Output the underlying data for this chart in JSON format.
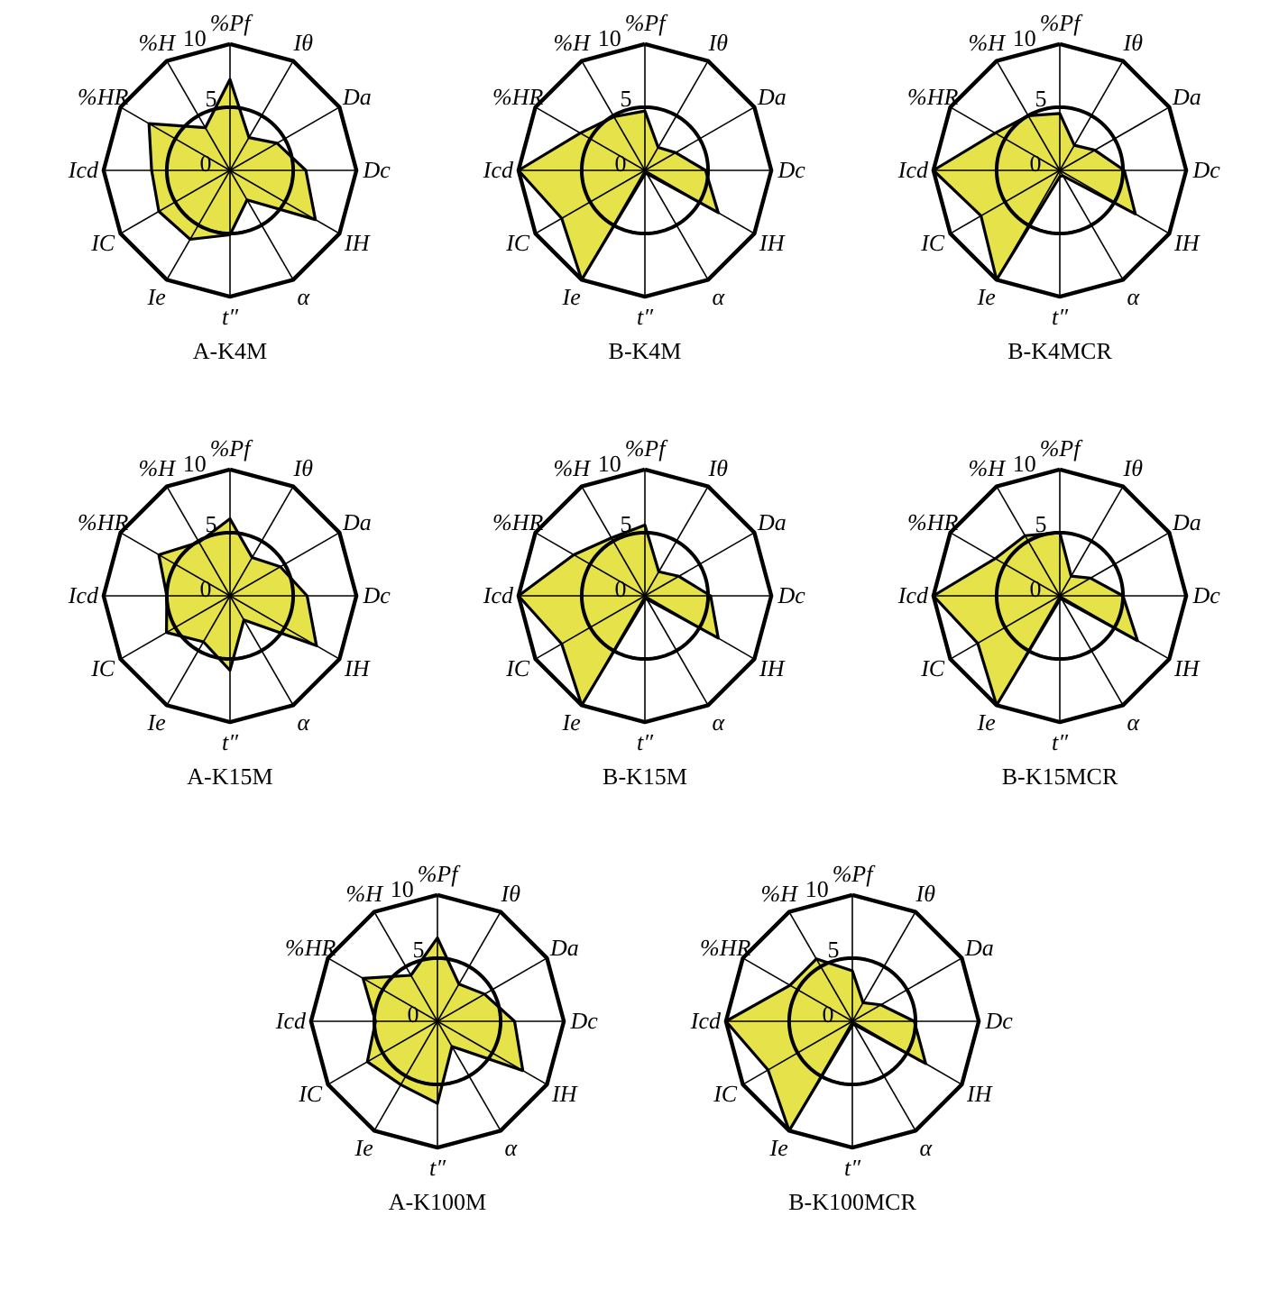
{
  "chart_data": [
    {
      "type": "radar",
      "title": "A-K4M",
      "categories": [
        "%Pf",
        "Iθ",
        "Da",
        "Dc",
        "IH",
        "α",
        "t″",
        "Ie",
        "IC",
        "Icd",
        "%HR",
        "%H"
      ],
      "ylim": [
        0,
        10
      ],
      "yticks": [
        0,
        5,
        10
      ],
      "grid": true,
      "series": [
        {
          "color": "#e6e24a",
          "values": [
            7.2,
            3.0,
            4.3,
            6.0,
            7.8,
            2.7,
            5.1,
            6.3,
            6.5,
            6.2,
            7.4,
            3.9
          ]
        }
      ]
    },
    {
      "type": "radar",
      "title": "B-K4M",
      "categories": [
        "%Pf",
        "Iθ",
        "Da",
        "Dc",
        "IH",
        "α",
        "t″",
        "Ie",
        "IC",
        "Icd",
        "%HR",
        "%H"
      ],
      "ylim": [
        0,
        10
      ],
      "yticks": [
        0,
        5,
        10
      ],
      "grid": true,
      "series": [
        {
          "color": "#e6e24a",
          "values": [
            4.7,
            2.1,
            2.8,
            4.8,
            6.7,
            0.3,
            0.3,
            10,
            7.6,
            10,
            5.9,
            4.9
          ]
        }
      ]
    },
    {
      "type": "radar",
      "title": "B-K4MCR",
      "categories": [
        "%Pf",
        "Iθ",
        "Da",
        "Dc",
        "IH",
        "α",
        "t″",
        "Ie",
        "IC",
        "Icd",
        "%HR",
        "%H"
      ],
      "ylim": [
        0,
        10
      ],
      "yticks": [
        0,
        5,
        10
      ],
      "grid": true,
      "series": [
        {
          "color": "#e6e24a",
          "values": [
            4.5,
            2.3,
            3.2,
            5.1,
            6.9,
            0.5,
            0.5,
            10,
            7.2,
            10,
            5.9,
            5.0
          ]
        }
      ]
    },
    {
      "type": "radar",
      "title": "A-K15M",
      "categories": [
        "%Pf",
        "Iθ",
        "Da",
        "Dc",
        "IH",
        "α",
        "t″",
        "Ie",
        "IC",
        "Icd",
        "%HR",
        "%H"
      ],
      "ylim": [
        0,
        10
      ],
      "yticks": [
        0,
        5,
        10
      ],
      "grid": true,
      "series": [
        {
          "color": "#e6e24a",
          "values": [
            6.1,
            3.5,
            4.6,
            6.1,
            7.9,
            2.2,
            5.9,
            4.2,
            5.8,
            5.0,
            6.5,
            4.9
          ]
        }
      ]
    },
    {
      "type": "radar",
      "title": "B-K15M",
      "categories": [
        "%Pf",
        "Iθ",
        "Da",
        "Dc",
        "IH",
        "α",
        "t″",
        "Ie",
        "IC",
        "Icd",
        "%HR",
        "%H"
      ],
      "ylim": [
        0,
        10
      ],
      "yticks": [
        0,
        5,
        10
      ],
      "grid": true,
      "series": [
        {
          "color": "#e6e24a",
          "values": [
            5.6,
            2.2,
            3.1,
            5.2,
            6.7,
            0.3,
            0.3,
            10,
            7.6,
            10,
            6.5,
            5.3
          ]
        }
      ]
    },
    {
      "type": "radar",
      "title": "B-K15MCR",
      "categories": [
        "%Pf",
        "Iθ",
        "Da",
        "Dc",
        "IH",
        "α",
        "t″",
        "Ie",
        "IC",
        "Icd",
        "%HR",
        "%H"
      ],
      "ylim": [
        0,
        10
      ],
      "yticks": [
        0,
        5,
        10
      ],
      "grid": true,
      "series": [
        {
          "color": "#e6e24a",
          "values": [
            5.0,
            1.8,
            2.8,
            5.0,
            7.1,
            0.3,
            0.3,
            10,
            7.5,
            10,
            5.9,
            5.5
          ]
        }
      ]
    },
    {
      "type": "radar",
      "title": "A-K100M",
      "categories": [
        "%Pf",
        "Iθ",
        "Da",
        "Dc",
        "IH",
        "α",
        "t″",
        "Ie",
        "IC",
        "Icd",
        "%HR",
        "%H"
      ],
      "ylim": [
        0,
        10
      ],
      "yticks": [
        0,
        5,
        10
      ],
      "grid": true,
      "series": [
        {
          "color": "#e6e24a",
          "values": [
            6.6,
            3.4,
            4.3,
            6.1,
            7.8,
            2.3,
            6.5,
            5.8,
            6.4,
            4.9,
            6.8,
            4.2
          ]
        }
      ]
    },
    {
      "type": "radar",
      "title": "B-K100MCR",
      "categories": [
        "%Pf",
        "Iθ",
        "Da",
        "Dc",
        "IH",
        "α",
        "t″",
        "Ie",
        "IC",
        "Icd",
        "%HR",
        "%H"
      ],
      "ylim": [
        0,
        10
      ],
      "yticks": [
        0,
        5,
        10
      ],
      "grid": true,
      "series": [
        {
          "color": "#e6e24a",
          "values": [
            4.0,
            1.7,
            2.6,
            4.9,
            6.7,
            0.3,
            0.3,
            10,
            7.7,
            10,
            5.7,
            5.7
          ]
        }
      ]
    }
  ]
}
